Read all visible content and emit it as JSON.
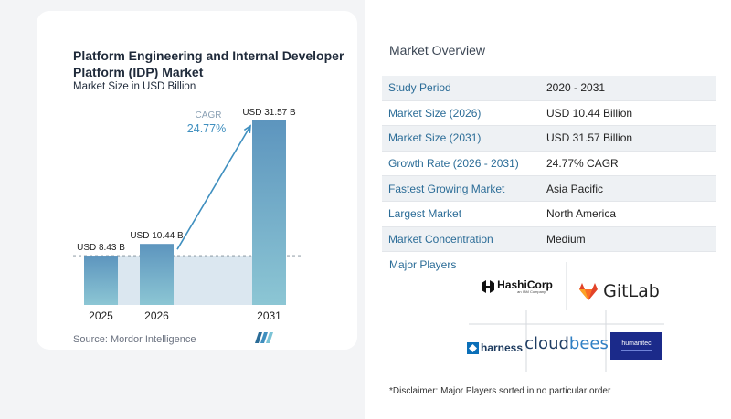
{
  "chart_data": {
    "type": "bar",
    "title": "Platform Engineering and Internal Developer Platform (IDP) Market",
    "subtitle": "Market Size in USD Billion",
    "categories": [
      "2025",
      "2026",
      "2031"
    ],
    "values": [
      8.43,
      10.44,
      31.57
    ],
    "data_labels": [
      "USD 8.43 B",
      "USD 10.44 B",
      "USD 31.57 B"
    ],
    "cagr_label": "CAGR",
    "cagr_value": "24.77%",
    "ylim": [
      0,
      31.57
    ],
    "colors": {
      "bar": "#5d95be",
      "bar_light": "#8cc6d4",
      "cagr": "#3f8fbf",
      "baseline_fill": "#dbe7f0"
    }
  },
  "source": "Source: Mordor Intelligence",
  "overview": {
    "title": "Market Overview",
    "rows": [
      {
        "key": "Study Period",
        "value": "2020 - 2031"
      },
      {
        "key": "Market Size (2026)",
        "value": "USD 10.44 Billion"
      },
      {
        "key": "Market Size (2031)",
        "value": "USD 31.57 Billion"
      },
      {
        "key": "Growth Rate (2026 - 2031)",
        "value": "24.77% CAGR"
      },
      {
        "key": "Fastest Growing Market",
        "value": "Asia Pacific"
      },
      {
        "key": "Largest Market",
        "value": "North America"
      },
      {
        "key": "Market Concentration",
        "value": "Medium"
      }
    ]
  },
  "players": {
    "title": "Major Players",
    "hashicorp": "HashiCorp",
    "hashicorp_sub": "an IBM Company",
    "gitlab": "GitLab",
    "cloudbees_a": "cloud",
    "cloudbees_b": "bees",
    "harness": "harness",
    "humanitec": "humanitec"
  },
  "disclaimer": "*Disclaimer: Major Players sorted in no particular order"
}
